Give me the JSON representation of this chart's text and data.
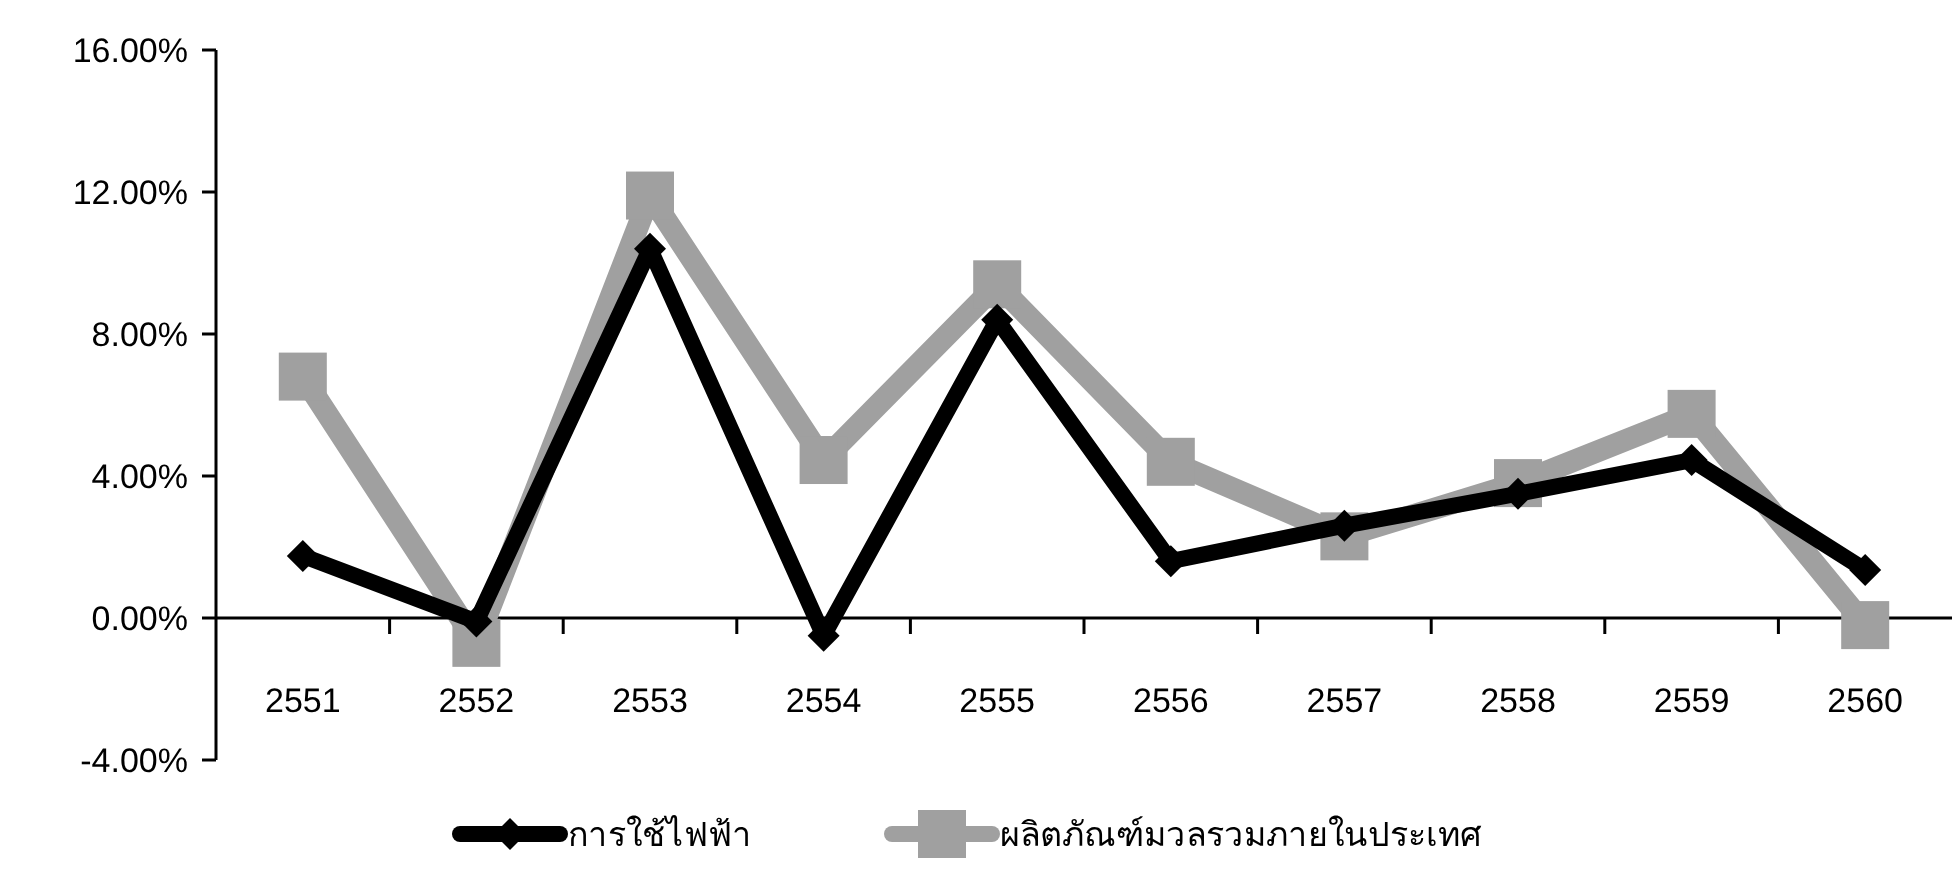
{
  "chart_data": {
    "type": "line",
    "categories": [
      "2551",
      "2552",
      "2553",
      "2554",
      "2555",
      "2556",
      "2557",
      "2558",
      "2559",
      "2560"
    ],
    "series": [
      {
        "name": "การใช้ไฟฟ้า",
        "color": "#000000",
        "marker": "diamond",
        "values": [
          1.75,
          -0.1,
          10.4,
          -0.5,
          8.4,
          1.6,
          2.6,
          3.5,
          4.45,
          1.35
        ]
      },
      {
        "name": "ผลิตภัณฑ์มวลรวมภายในประเทศ",
        "color": "#a0a0a0",
        "marker": "square",
        "values": [
          6.8,
          -0.7,
          11.9,
          4.45,
          9.4,
          4.4,
          2.3,
          3.8,
          5.75,
          -0.2
        ]
      }
    ],
    "ylim": [
      -4,
      16
    ],
    "yticks": [
      {
        "value": -4,
        "label": "-4.00%"
      },
      {
        "value": 0,
        "label": "0.00%"
      },
      {
        "value": 4,
        "label": "4.00%"
      },
      {
        "value": 8,
        "label": "8.00%"
      },
      {
        "value": 12,
        "label": "12.00%"
      },
      {
        "value": 16,
        "label": "16.00%"
      }
    ],
    "grid": false,
    "legend": "bottom"
  }
}
